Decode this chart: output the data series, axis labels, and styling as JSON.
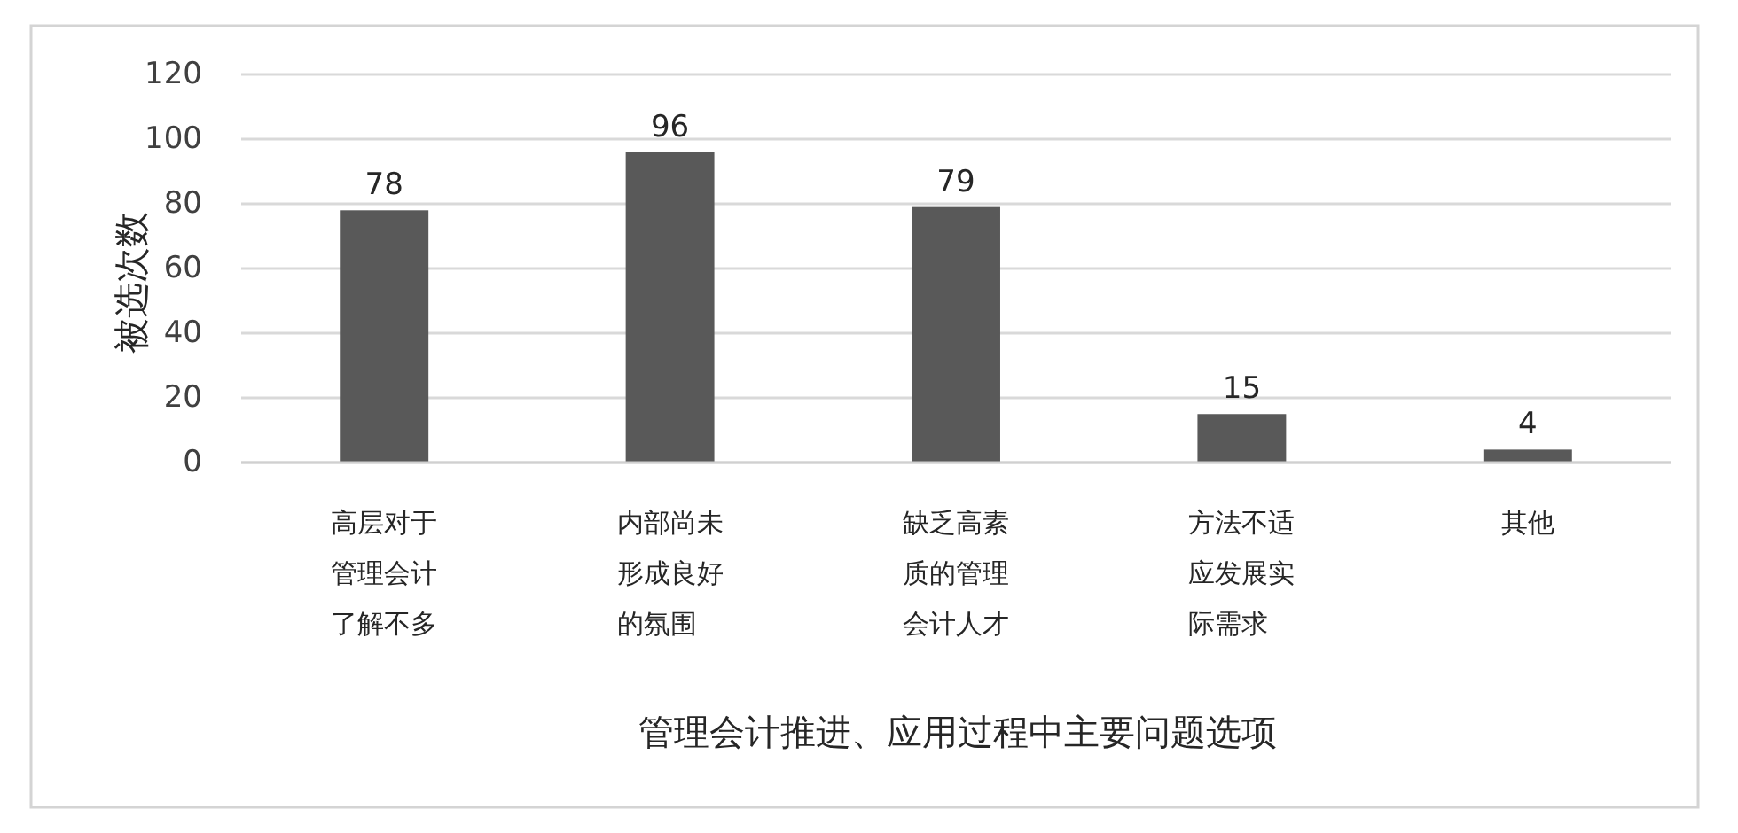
{
  "chart_data": {
    "type": "bar",
    "xlabel": "管理会计推进、应用过程中主要问题选项",
    "ylabel": "被选次数",
    "categories": [
      "高层对于管理会计了解不多",
      "内部尚未形成良好的氛围",
      "缺乏高素质的管理会计人才",
      "方法不适应发展实际需求",
      "其他"
    ],
    "values": [
      78,
      96,
      79,
      15,
      4
    ],
    "color": "#595959",
    "ylim": [
      0,
      120
    ],
    "yticks": [
      0,
      20,
      40,
      60,
      80,
      100,
      120
    ],
    "grid": "y",
    "data_labels": true
  }
}
